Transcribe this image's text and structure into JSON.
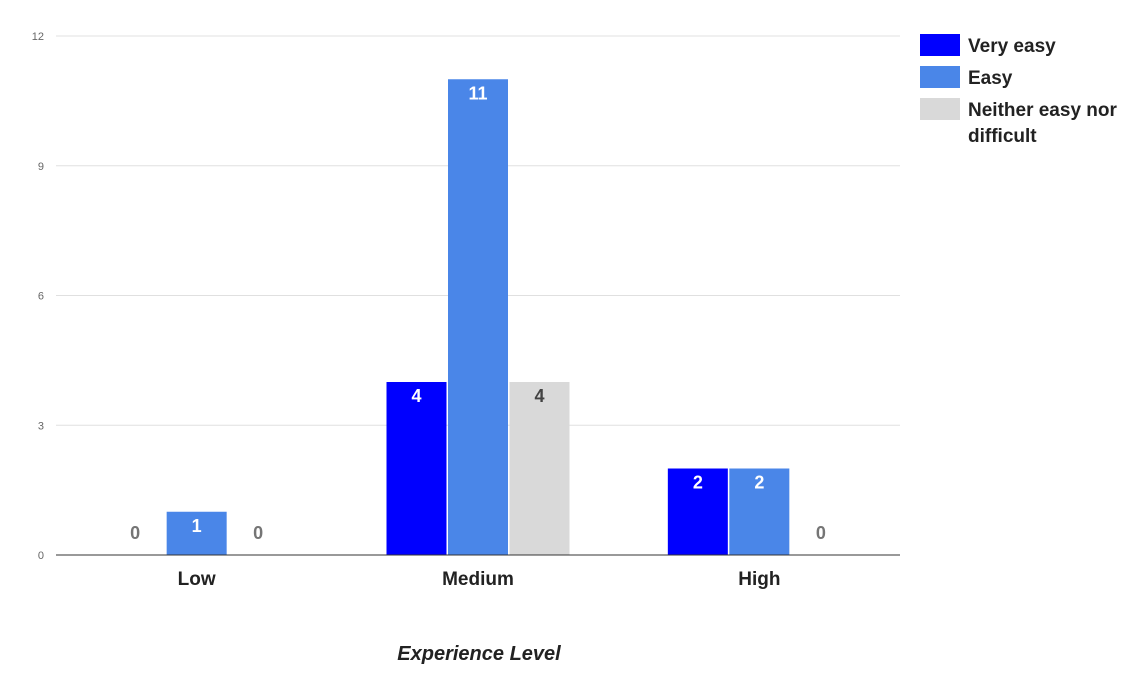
{
  "chart_data": {
    "type": "bar",
    "categories": [
      "Low",
      "Medium",
      "High"
    ],
    "series": [
      {
        "name": "Very easy",
        "values": [
          0,
          4,
          2
        ],
        "color": "#0000ff",
        "label_color": "#ffffff"
      },
      {
        "name": "Easy",
        "values": [
          1,
          11,
          2
        ],
        "color": "#4a86e8",
        "label_color": "#ffffff"
      },
      {
        "name": "Neither easy nor difficult",
        "values": [
          0,
          4,
          0
        ],
        "color": "#d9d9d9",
        "label_color": "#434343"
      }
    ],
    "zero_label_color": "#757575",
    "xlabel": "Experience Level",
    "ylabel": "",
    "ylim": [
      0,
      12
    ],
    "yticks": [
      0,
      3,
      6,
      9,
      12
    ],
    "grid": true,
    "legend": "right",
    "legend_lines": [
      [
        "Very easy"
      ],
      [
        "Easy"
      ],
      [
        "Neither easy nor",
        "difficult"
      ]
    ]
  }
}
